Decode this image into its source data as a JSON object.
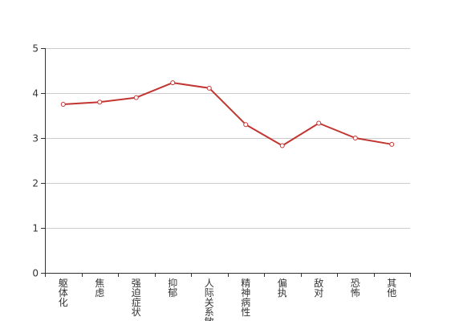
{
  "chart_data": {
    "type": "line",
    "categories": [
      "躯体化",
      "焦虑",
      "强迫症状",
      "抑郁",
      "人际关系敏感",
      "精神病性",
      "偏执",
      "敌对",
      "恐怖",
      "其他"
    ],
    "series": [
      {
        "values": [
          3.75,
          3.8,
          3.9,
          4.23,
          4.11,
          3.3,
          2.83,
          3.33,
          3.0,
          2.86
        ]
      }
    ],
    "title": "",
    "xlabel": "",
    "ylabel": "",
    "ylim": [
      0,
      5
    ],
    "yticks": [
      "0",
      "1",
      "2",
      "3",
      "4",
      "5"
    ],
    "grid": true,
    "legend": "none",
    "colors": {
      "line": "#c23531",
      "marker_fill": "#ffffff",
      "grid": "#cccccc",
      "axis": "#333333",
      "text": "#333333"
    }
  }
}
